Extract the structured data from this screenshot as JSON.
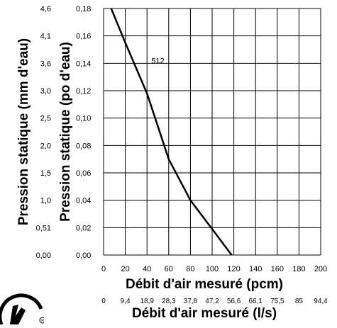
{
  "chart_data": {
    "type": "line",
    "ylabel_left": "Pression statique (mm d'eau)",
    "ylabel_right": "Pression statique (po d'eau)",
    "xlabel_cfm": "Débit d'air mesuré (pcm)",
    "xlabel_ls": "Débit d'air mesuré (l/s)",
    "x_ticks_cfm": [
      "0",
      "20",
      "40",
      "60",
      "80",
      "100",
      "120",
      "140",
      "160",
      "180",
      "200"
    ],
    "x_ticks_ls": [
      "0",
      "9,4",
      "18,9",
      "28,3",
      "37,8",
      "47,2",
      "56,6",
      "66,1",
      "75,5",
      "85",
      "94,4"
    ],
    "y_ticks_in": [
      "0,00",
      "0,02",
      "0,04",
      "0,06",
      "0,08",
      "0,10",
      "0,12",
      "0,14",
      "0,16",
      "0,18"
    ],
    "y_ticks_mm": [
      "0,00",
      "0,51",
      "1,0",
      "1,5",
      "2,0",
      "2,5",
      "3,0",
      "3,6",
      "4,1",
      "4,6"
    ],
    "xlim": [
      0,
      200
    ],
    "ylim": [
      0,
      0.18
    ],
    "grid": true,
    "series": [
      {
        "name": "512",
        "x": [
          7,
          20,
          40,
          60,
          80,
          100,
          118
        ],
        "y": [
          0.18,
          0.155,
          0.118,
          0.07,
          0.04,
          0.019,
          0.0
        ]
      }
    ]
  }
}
